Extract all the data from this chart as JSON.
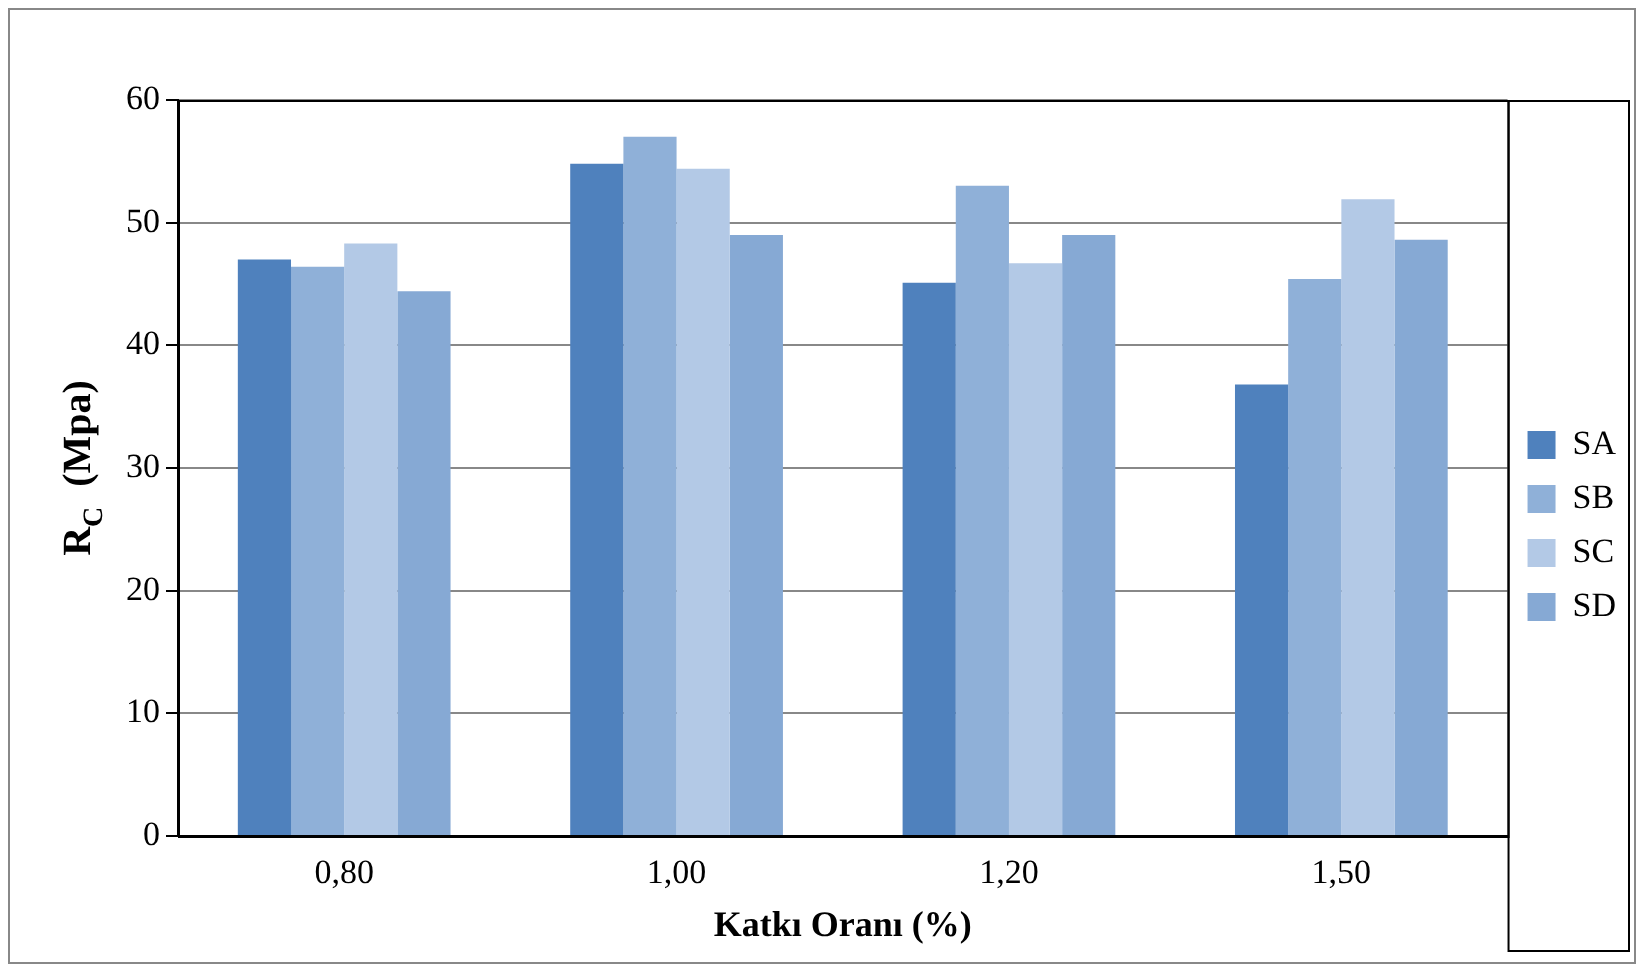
{
  "chart_data": {
    "type": "bar",
    "xlabel": "Katkı Oranı (%)",
    "ylabel": "R$_{C}$  (Mpa)",
    "categories": [
      "0,80",
      "1,00",
      "1,20",
      "1,50"
    ],
    "series": [
      {
        "name": "SA",
        "color": "#4f81bd",
        "values": [
          47.0,
          54.8,
          45.1,
          36.8
        ]
      },
      {
        "name": "SB",
        "color": "#8fb0d8",
        "values": [
          46.4,
          57.0,
          53.0,
          45.4
        ]
      },
      {
        "name": "SC",
        "color": "#b3c9e6",
        "values": [
          48.3,
          54.4,
          46.7,
          51.9
        ]
      },
      {
        "name": "SD",
        "color": "#86a9d4",
        "values": [
          44.4,
          49.0,
          49.0,
          48.6
        ]
      }
    ],
    "ylim": [
      0,
      60
    ],
    "yticks": [
      0,
      10,
      20,
      30,
      40,
      50,
      60
    ],
    "grid": "y",
    "legend": "right"
  }
}
